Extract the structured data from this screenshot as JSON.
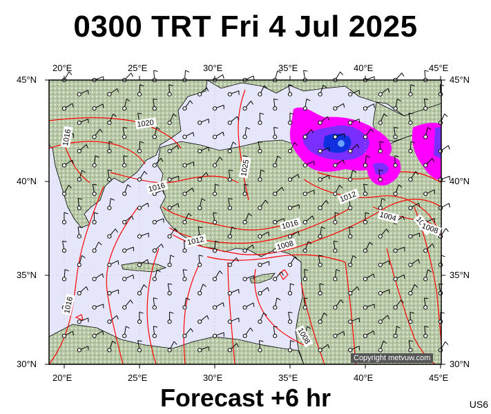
{
  "title": "0300 TRT Fri 4 Jul 2025",
  "subtitle": "Forecast +6 hr",
  "product_code": "US6",
  "copyright": "Copyright metvuw.com",
  "map": {
    "lon_range": [
      19,
      45
    ],
    "lat_range": [
      30,
      45
    ],
    "lon_labels": [
      "20°E",
      "25°E",
      "30°E",
      "35°E",
      "40°E",
      "45°E"
    ],
    "lat_labels": [
      "45°N",
      "40°N",
      "35°N",
      "30°N"
    ],
    "isobar_labels": [
      "1020",
      "1016",
      "1012",
      "1008",
      "1025",
      "1016",
      "1012",
      "1016",
      "1008",
      "1004",
      "1008",
      "1016",
      "1008"
    ],
    "colors": {
      "sea": "#e6e6fa",
      "land": "#b9c9a8",
      "isobar": "#ff0000",
      "precip_light": "#ff00ff",
      "precip_mid": "#7b2fff",
      "precip_heavy": "#1030e0"
    }
  }
}
